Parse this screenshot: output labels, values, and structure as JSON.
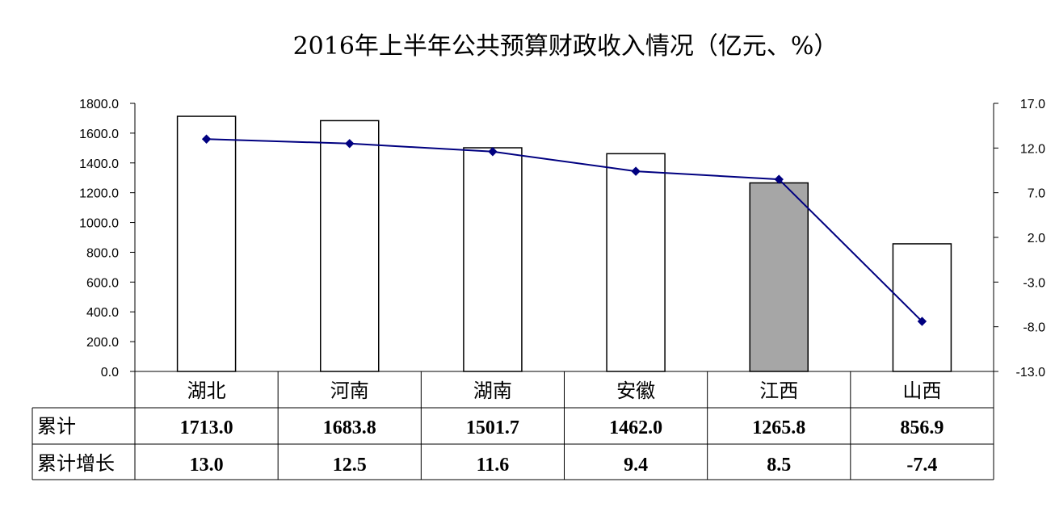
{
  "chart_data": {
    "type": "bar",
    "title": "2016年上半年公共预算财政收入情况（亿元、%）",
    "categories": [
      "湖北",
      "河南",
      "湖南",
      "安徽",
      "江西",
      "山西"
    ],
    "series": [
      {
        "name": "累计",
        "type": "bar",
        "axis": "left",
        "values": [
          1713.0,
          1683.8,
          1501.7,
          1462.0,
          1265.8,
          856.9
        ],
        "value_labels": [
          "1713.0",
          "1683.8",
          "1501.7",
          "1462.0",
          "1265.8",
          "856.9"
        ]
      },
      {
        "name": "累计增长",
        "type": "line",
        "axis": "right",
        "values": [
          13.0,
          12.5,
          11.6,
          9.4,
          8.5,
          -7.4
        ],
        "value_labels": [
          "13.0",
          "12.5",
          "11.6",
          "9.4",
          "8.5",
          "-7.4"
        ]
      }
    ],
    "ylim_left": [
      0,
      1800
    ],
    "yticks_left": [
      "0.0",
      "200.0",
      "400.0",
      "600.0",
      "800.0",
      "1000.0",
      "1200.0",
      "1400.0",
      "1600.0",
      "1800.0"
    ],
    "ylim_right": [
      -13,
      17
    ],
    "yticks_right": [
      "-13.0",
      "-8.0",
      "-3.0",
      "2.0",
      "7.0",
      "12.0",
      "17.0"
    ],
    "highlight_category": "江西",
    "colors": {
      "bar_fill": "#ffffff",
      "bar_highlight": "#a6a6a6",
      "bar_stroke": "#000000",
      "line": "#000080"
    },
    "grid": false,
    "legend": "data-table"
  }
}
